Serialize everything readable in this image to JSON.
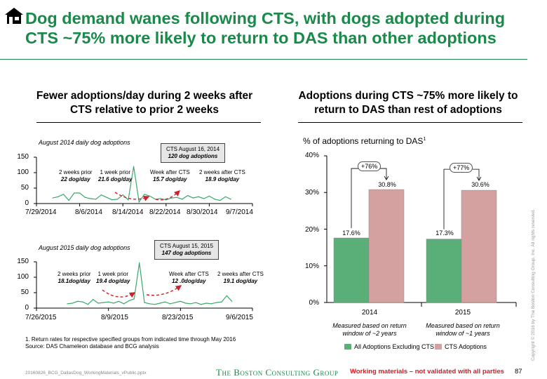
{
  "header": {
    "title": "Dog demand wanes following CTS, with dogs adopted during CTS ~75% more likely to return to DAS than other adoptions",
    "logo_icon": "house-icon"
  },
  "left": {
    "title": "Fewer adoptions/day during 2 weeks after CTS relative to prior 2 weeks"
  },
  "right": {
    "title": "Adoptions during CTS ~75% more likely to return to DAS than rest of adoptions"
  },
  "colors": {
    "green": "#5aae78",
    "pink": "#d4a0a0",
    "line": "#3aa86a",
    "arrow": "#d0202a",
    "title": "#1a8a4a"
  },
  "chart_data": [
    {
      "type": "line",
      "title": "August 2014 daily dog adoptions",
      "y_ticks": [
        "150",
        "100",
        "50",
        "0"
      ],
      "ylim": [
        0,
        150
      ],
      "x_ticks": [
        "7/29/2014",
        "8/6/2014",
        "8/14/2014",
        "8/22/2014",
        "8/30/2014",
        "9/7/2014"
      ],
      "x_start": "7/29/2014",
      "x_end": "9/7/2014",
      "series": [
        {
          "x": [
            "8/1/2014",
            "8/2/2014",
            "8/3/2014",
            "8/4/2014",
            "8/5/2014",
            "8/6/2014",
            "8/7/2014",
            "8/8/2014",
            "8/9/2014",
            "8/10/2014",
            "8/11/2014",
            "8/12/2014",
            "8/13/2014",
            "8/14/2014",
            "8/15/2014",
            "8/16/2014",
            "8/17/2014",
            "8/18/2014",
            "8/19/2014",
            "8/20/2014",
            "8/21/2014",
            "8/22/2014",
            "8/23/2014",
            "8/24/2014",
            "8/25/2014",
            "8/26/2014",
            "8/27/2014",
            "8/28/2014",
            "8/29/2014",
            "8/30/2014",
            "8/31/2014",
            "9/1/2014",
            "9/2/2014",
            "9/3/2014"
          ],
          "values": [
            18,
            22,
            30,
            10,
            34,
            34,
            20,
            16,
            14,
            28,
            20,
            12,
            14,
            28,
            12,
            120,
            5,
            30,
            24,
            14,
            16,
            12,
            18,
            20,
            14,
            26,
            18,
            22,
            16,
            24,
            14,
            10,
            22,
            14
          ]
        }
      ],
      "annotations": [
        {
          "label": "2 weeks prior",
          "value": "22 dog/day"
        },
        {
          "label": "1 week prior",
          "value": "21.6 dog/day"
        },
        {
          "label": "Week after CTS",
          "value": "15.7 dog/day"
        },
        {
          "label": "2 weeks after CTS",
          "value": "18.9 dog/day"
        }
      ],
      "callout": {
        "line1": "CTS August 16, 2014",
        "line2": "120 dog adoptions"
      }
    },
    {
      "type": "line",
      "title": "August 2015 daily dog adoptions",
      "y_ticks": [
        "150",
        "100",
        "50",
        "0"
      ],
      "ylim": [
        0,
        150
      ],
      "x_ticks": [
        "7/26/2015",
        "8/9/2015",
        "8/23/2015",
        "9/6/2015"
      ],
      "x_start": "7/26/2015",
      "x_end": "9/6/2015",
      "series": [
        {
          "x": [
            "8/1/2015",
            "8/2/2015",
            "8/3/2015",
            "8/4/2015",
            "8/5/2015",
            "8/6/2015",
            "8/7/2015",
            "8/8/2015",
            "8/9/2015",
            "8/10/2015",
            "8/11/2015",
            "8/12/2015",
            "8/13/2015",
            "8/14/2015",
            "8/15/2015",
            "8/16/2015",
            "8/17/2015",
            "8/18/2015",
            "8/19/2015",
            "8/20/2015",
            "8/21/2015",
            "8/22/2015",
            "8/23/2015",
            "8/24/2015",
            "8/25/2015",
            "8/26/2015",
            "8/27/2015",
            "8/28/2015",
            "8/29/2015",
            "8/30/2015",
            "8/31/2015",
            "9/1/2015",
            "9/2/2015"
          ],
          "values": [
            14,
            16,
            22,
            20,
            12,
            28,
            16,
            18,
            20,
            16,
            22,
            14,
            24,
            30,
            147,
            18,
            14,
            12,
            16,
            20,
            14,
            18,
            22,
            16,
            14,
            18,
            12,
            16,
            14,
            18,
            20,
            40,
            22
          ]
        }
      ],
      "annotations": [
        {
          "label": "2 weeks prior",
          "value": "18.1dog/day"
        },
        {
          "label": "1 week prior",
          "value": "19.4 dog/day"
        },
        {
          "label": "Week after CTS",
          "value": "12 .0dog/day"
        },
        {
          "label": "2 weeks after CTS",
          "value": "19.1 dog/day"
        }
      ],
      "callout": {
        "line1": "CTS August 15, 2015",
        "line2": "147 dog adoptions"
      }
    },
    {
      "type": "bar",
      "title": "% of adoptions returning to DAS",
      "title_sup": "1",
      "y_ticks": [
        "40%",
        "30%",
        "20%",
        "10%",
        "0%"
      ],
      "ylim": [
        0,
        40
      ],
      "categories": [
        "2014",
        "2015"
      ],
      "category_notes": [
        "Measured based on return window of ~2 years",
        "Measured based on return window of ~1 years"
      ],
      "series": [
        {
          "name": "All Adoptions Excluding CTS",
          "values": [
            17.6,
            17.3
          ],
          "labels": [
            "17.6%",
            "17.3%"
          ]
        },
        {
          "name": "CTS Adoptions",
          "values": [
            30.8,
            30.6
          ],
          "labels": [
            "30.8%",
            "30.6%"
          ]
        }
      ],
      "increase_labels": [
        "+76%",
        "+77%"
      ]
    }
  ],
  "footer": {
    "footnote1": "1. Return rates for respective specified groups from indicated time through May 2016",
    "footnote2": "Source: DAS Chameleon database and BCG analysis",
    "filename": "20160826_BCG_DallasDog_WorkingMaterials_vPublic.pptx",
    "company": "The Boston Consulting Group",
    "disclaimer": "Working materials – not validated with all parties",
    "page": "87",
    "copyright": "Copyright © 2016 by The Boston Consulting Group, Inc. All rights reserved."
  }
}
